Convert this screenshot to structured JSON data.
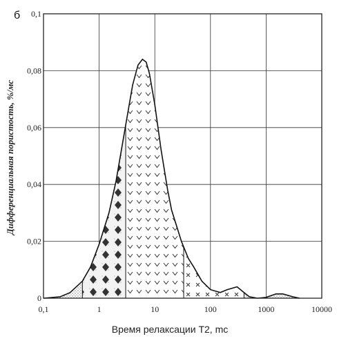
{
  "panel_label": "б",
  "chart_data": {
    "type": "area",
    "xscale": "log",
    "xlabel": "Время релаксации T2, mc",
    "ylabel": "Дифференциальная пористость, %/мс",
    "xlim": [
      0.1,
      10000
    ],
    "ylim": [
      0,
      0.1
    ],
    "x_ticks": [
      "0,1",
      "1",
      "10",
      "100",
      "1000",
      "10000"
    ],
    "y_ticks": [
      "0",
      "0,02",
      "0,04",
      "0,06",
      "0,08",
      "0,1"
    ],
    "grid": true,
    "series": [
      {
        "x": [
          0.1,
          0.2,
          0.3,
          0.5,
          0.7,
          1,
          1.5,
          2,
          3,
          4,
          5,
          6,
          7,
          8,
          10,
          13,
          17,
          20,
          30,
          40,
          50,
          70,
          100,
          150,
          200,
          300,
          400,
          500,
          700,
          1000,
          1500,
          2000,
          3000,
          4000
        ],
        "values": [
          0,
          0.0005,
          0.002,
          0.006,
          0.011,
          0.019,
          0.03,
          0.041,
          0.061,
          0.075,
          0.082,
          0.084,
          0.083,
          0.079,
          0.068,
          0.052,
          0.038,
          0.031,
          0.02,
          0.014,
          0.011,
          0.006,
          0.003,
          0.002,
          0.003,
          0.004,
          0.002,
          0.0005,
          0,
          0.0003,
          0.0015,
          0.0015,
          0.0005,
          0
        ]
      }
    ],
    "fill_regions": [
      {
        "pattern": "dotted",
        "from": 0.1,
        "to": 0.5
      },
      {
        "pattern": "diamonds",
        "from": 0.5,
        "to": 3
      },
      {
        "pattern": "checkmarks",
        "from": 3,
        "to": 33
      },
      {
        "pattern": "crosses",
        "from": 33,
        "to": 400
      },
      {
        "pattern": "dotted",
        "from": 400,
        "to": 4000
      }
    ]
  }
}
